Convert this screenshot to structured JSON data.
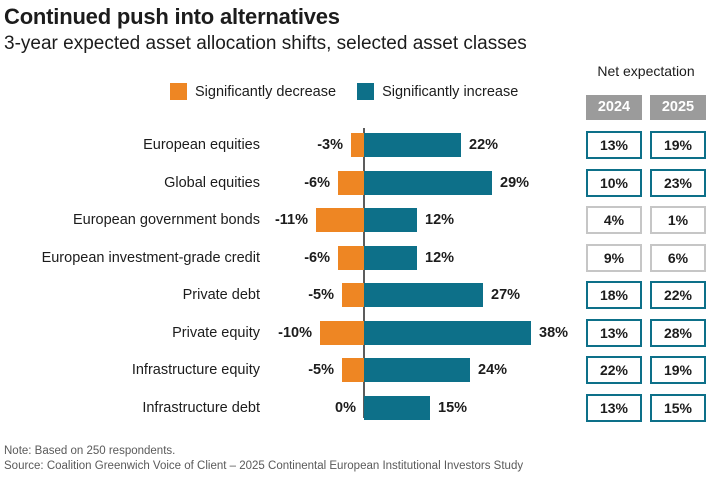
{
  "header": {
    "title": "Continued push into alternatives",
    "subtitle": "3-year expected asset allocation shifts, selected asset classes"
  },
  "legend": {
    "decrease_label": "Significantly decrease",
    "increase_label": "Significantly increase",
    "decrease_color": "#EE8623",
    "increase_color": "#0D7089"
  },
  "net_table": {
    "header": "Net expectation",
    "year_2024": "2024",
    "year_2025": "2025",
    "header_bg": "#9B9B9B",
    "highlight_border": "#0D7089",
    "muted_border": "#C6C6C6"
  },
  "chart_data": {
    "type": "bar",
    "orientation": "horizontal",
    "diverging": true,
    "title": "Continued push into alternatives",
    "subtitle": "3-year expected asset allocation shifts, selected asset classes",
    "categories": [
      "European equities",
      "Global equities",
      "European government bonds",
      "European investment-grade credit",
      "Private debt",
      "Private equity",
      "Infrastructure equity",
      "Infrastructure debt"
    ],
    "series": [
      {
        "name": "Significantly decrease",
        "color": "#EE8623",
        "values": [
          -3,
          -6,
          -11,
          -6,
          -5,
          -10,
          -5,
          0
        ]
      },
      {
        "name": "Significantly increase",
        "color": "#0D7089",
        "values": [
          22,
          29,
          12,
          12,
          27,
          38,
          24,
          15
        ]
      }
    ],
    "net_expectation": {
      "label": "Net expectation",
      "years": [
        "2024",
        "2025"
      ],
      "values_2024": [
        13,
        10,
        4,
        9,
        18,
        13,
        22,
        13
      ],
      "values_2025": [
        19,
        23,
        1,
        6,
        22,
        28,
        19,
        15
      ]
    },
    "value_suffix": "%",
    "xlim": [
      -24,
      49
    ],
    "grid": false,
    "legend_position": "top"
  },
  "rows": [
    {
      "label": "European equities",
      "decrease": 3,
      "increase": 22,
      "decrease_label": "-3%",
      "increase_label": "22%",
      "net_2024": "13%",
      "net_2025": "19%",
      "muted": false
    },
    {
      "label": "Global equities",
      "decrease": 6,
      "increase": 29,
      "decrease_label": "-6%",
      "increase_label": "29%",
      "net_2024": "10%",
      "net_2025": "23%",
      "muted": false
    },
    {
      "label": "European government bonds",
      "decrease": 11,
      "increase": 12,
      "decrease_label": "-11%",
      "increase_label": "12%",
      "net_2024": "4%",
      "net_2025": "1%",
      "muted": true
    },
    {
      "label": "European investment-grade credit",
      "decrease": 6,
      "increase": 12,
      "decrease_label": "-6%",
      "increase_label": "12%",
      "net_2024": "9%",
      "net_2025": "6%",
      "muted": true
    },
    {
      "label": "Private debt",
      "decrease": 5,
      "increase": 27,
      "decrease_label": "-5%",
      "increase_label": "27%",
      "net_2024": "18%",
      "net_2025": "22%",
      "muted": false
    },
    {
      "label": "Private equity",
      "decrease": 10,
      "increase": 38,
      "decrease_label": "-10%",
      "increase_label": "38%",
      "net_2024": "13%",
      "net_2025": "28%",
      "muted": false
    },
    {
      "label": "Infrastructure equity",
      "decrease": 5,
      "increase": 24,
      "decrease_label": "-5%",
      "increase_label": "24%",
      "net_2024": "22%",
      "net_2025": "19%",
      "muted": false
    },
    {
      "label": "Infrastructure debt",
      "decrease": 0,
      "increase": 15,
      "decrease_label": "0%",
      "increase_label": "15%",
      "net_2024": "13%",
      "net_2025": "15%",
      "muted": false
    }
  ],
  "footer": {
    "note": "Note: Based on 250 respondents.",
    "source": "Source:  Coalition Greenwich Voice of Client – 2025 Continental European Institutional Investors Study"
  }
}
